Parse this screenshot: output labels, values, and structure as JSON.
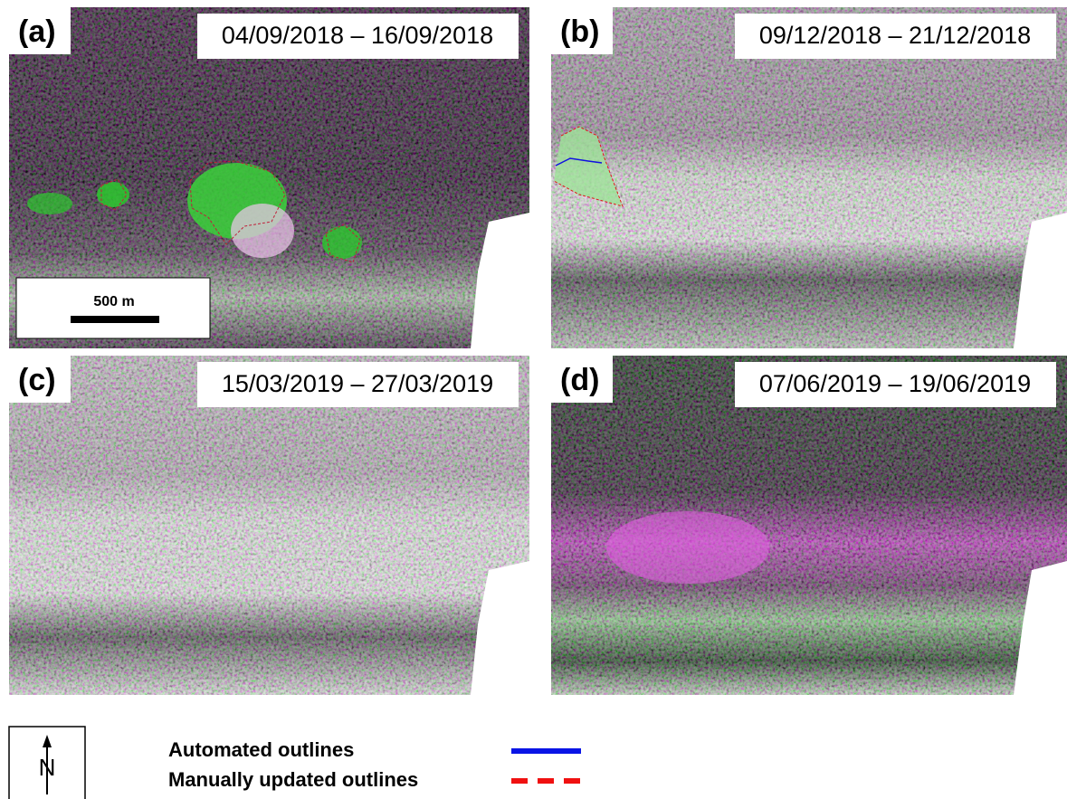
{
  "panels": [
    {
      "label": "(a)",
      "date": "04/09/2018 – 16/09/2018"
    },
    {
      "label": "(b)",
      "date": "09/12/2018 – 21/12/2018"
    },
    {
      "label": "(c)",
      "date": "15/03/2019 – 27/03/2019"
    },
    {
      "label": "(d)",
      "date": "07/06/2019 – 19/06/2019"
    }
  ],
  "scale_bar": "500 m",
  "north": "N",
  "legend": [
    {
      "label": "Automated outlines",
      "color": "#0a14e6",
      "style": "solid"
    },
    {
      "label": "Manually updated outlines",
      "color": "#f01010",
      "style": "dashed"
    }
  ]
}
